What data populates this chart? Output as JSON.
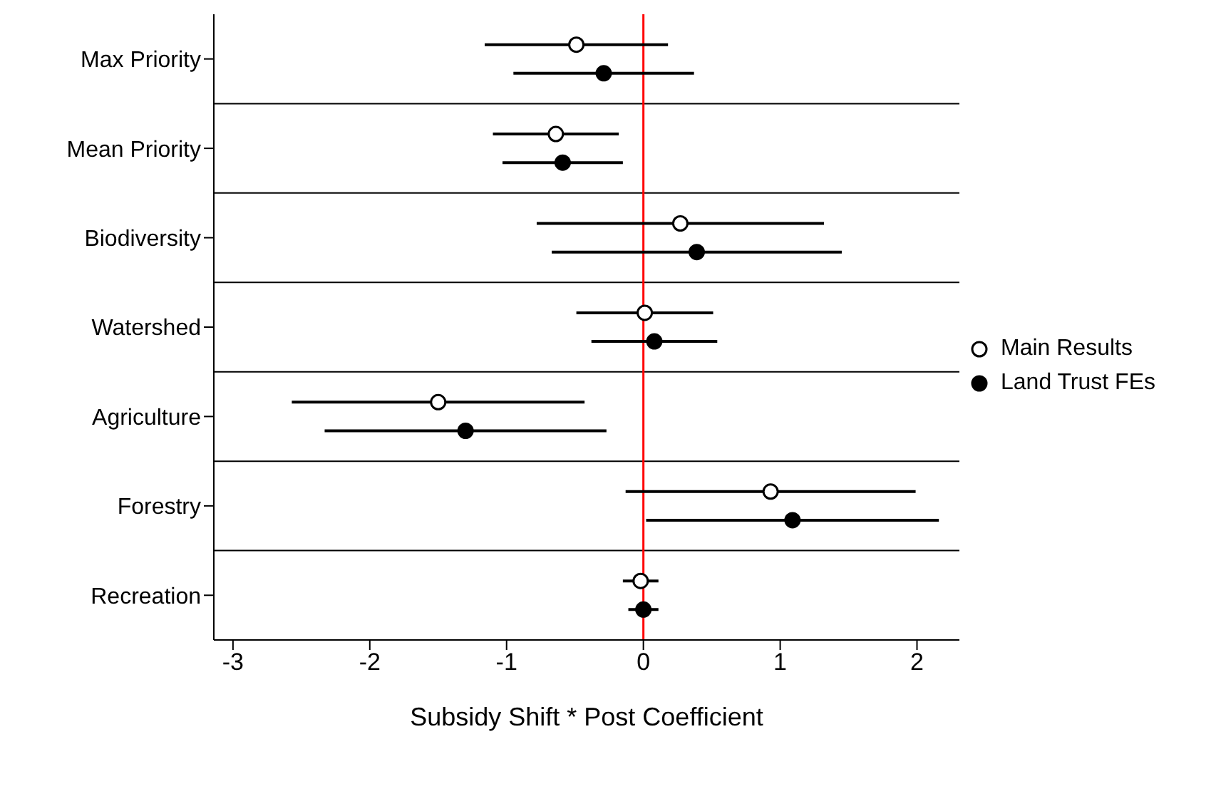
{
  "chart_data": {
    "type": "scatter",
    "orientation": "horizontal",
    "xlabel": "Subsidy Shift * Post Coefficient",
    "categories": [
      "Max Priority",
      "Mean Priority",
      "Biodiversity",
      "Watershed",
      "Agriculture",
      "Forestry",
      "Recreation"
    ],
    "xlim": [
      -3.14,
      2.31
    ],
    "xticks": [
      -3,
      -2,
      -1,
      0,
      1,
      2
    ],
    "grid": "y",
    "legend": "right",
    "marker": "circle",
    "ref_lines": [
      {
        "axis": "x",
        "value": 0,
        "label": null,
        "color": "#ff0000"
      }
    ],
    "series": [
      {
        "name": "Main Results",
        "color": "#000000",
        "values": [
          -0.49,
          -0.64,
          0.27,
          0.01,
          -1.5,
          0.93,
          -0.02
        ],
        "errors": [
          0.67,
          0.46,
          1.05,
          0.5,
          1.07,
          1.06,
          0.13
        ]
      },
      {
        "name": "Land Trust FEs",
        "color": "#000000",
        "values": [
          -0.29,
          -0.59,
          0.39,
          0.08,
          -1.3,
          1.09,
          0.0
        ],
        "errors": [
          0.66,
          0.44,
          1.06,
          0.46,
          1.03,
          1.07,
          0.11
        ]
      }
    ]
  }
}
